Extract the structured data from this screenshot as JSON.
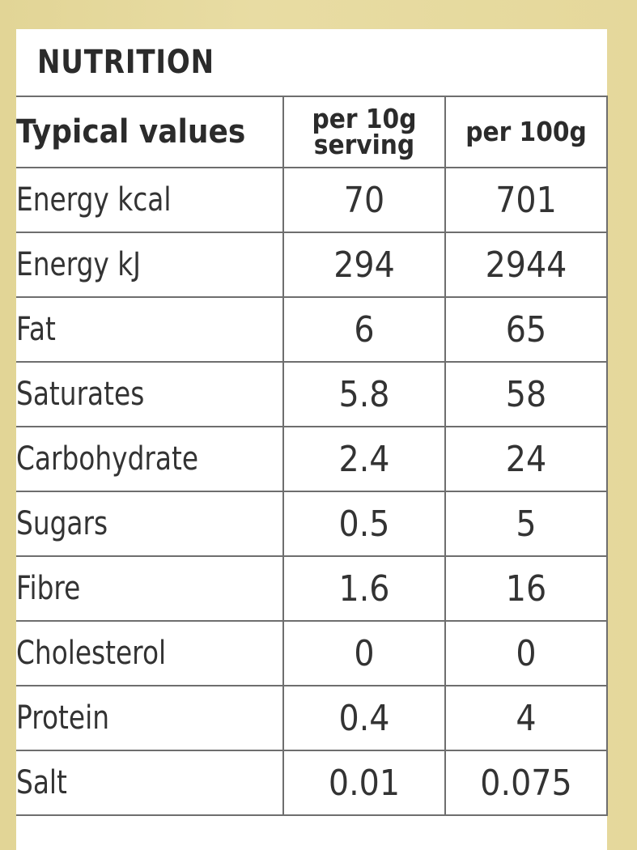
{
  "panel": {
    "title": "NUTRITION"
  },
  "table": {
    "header": {
      "name": "Typical values",
      "per_serving_line1": "per 10g",
      "per_serving_line2": "serving",
      "per_100g": "per 100g"
    },
    "rows": [
      {
        "name": "Energy kcal",
        "per_serving": "70",
        "per_100g": "701"
      },
      {
        "name": "Energy kJ",
        "per_serving": "294",
        "per_100g": "2944"
      },
      {
        "name": "Fat",
        "per_serving": "6",
        "per_100g": "65"
      },
      {
        "name": "Saturates",
        "per_serving": "5.8",
        "per_100g": "58"
      },
      {
        "name": "Carbohydrate",
        "per_serving": "2.4",
        "per_100g": "24"
      },
      {
        "name": "Sugars",
        "per_serving": "0.5",
        "per_100g": "5"
      },
      {
        "name": "Fibre",
        "per_serving": "1.6",
        "per_100g": "16"
      },
      {
        "name": "Cholesterol",
        "per_serving": "0",
        "per_100g": "0"
      },
      {
        "name": "Protein",
        "per_serving": "0.4",
        "per_100g": "4"
      },
      {
        "name": "Salt",
        "per_serving": "0.01",
        "per_100g": "0.075"
      }
    ]
  },
  "colors": {
    "background": "#e5d89b",
    "card": "#ffffff",
    "text": "#333333",
    "rule": "#6e6e6e"
  }
}
